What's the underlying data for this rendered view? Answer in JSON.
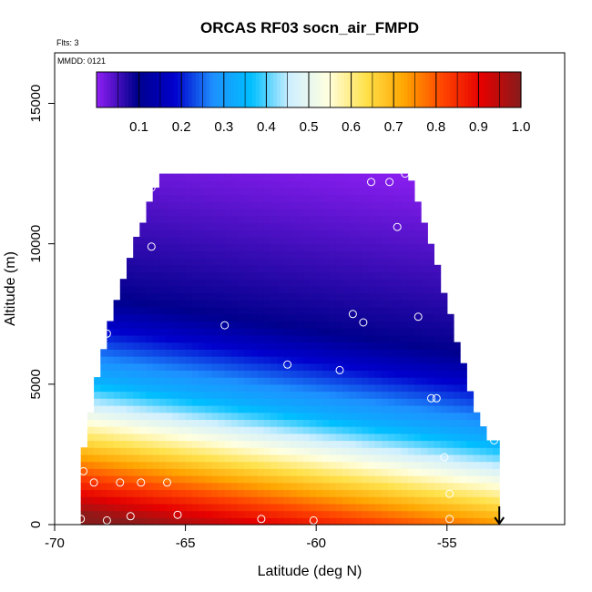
{
  "chart_data": {
    "type": "heatmap",
    "title": "ORCAS RF03 socn_air_FMPD",
    "note_flights": "Flts: 3",
    "note_date": "MMDD: 0121",
    "xlabel": "Latitude (deg N)",
    "ylabel": "Altitude (m)",
    "xlim": [
      -70,
      -50.5
    ],
    "ylim": [
      0,
      16800
    ],
    "xticks": [
      -70,
      -65,
      -60,
      -55
    ],
    "xtick_labels": [
      "-70",
      "-65",
      "-60",
      "-55"
    ],
    "yticks": [
      0,
      5000,
      10000,
      15000
    ],
    "ytick_labels": [
      "0",
      "5000",
      "10000",
      "15000"
    ],
    "colorbar": {
      "ticks": [
        0.1,
        0.2,
        0.3,
        0.4,
        0.5,
        0.6,
        0.7,
        0.8,
        0.9,
        1.0
      ],
      "tick_labels": [
        "0.1",
        "0.2",
        "0.3",
        "0.4",
        "0.5",
        "0.6",
        "0.7",
        "0.8",
        "0.9",
        "1.0"
      ],
      "range": [
        0,
        1
      ],
      "colors": [
        "#8a1ef0",
        "#00008c",
        "#0000cd",
        "#1e90ff",
        "#00bfff",
        "#cfefff",
        "#ffffe0",
        "#ffe14a",
        "#ffa500",
        "#ff4500",
        "#e60000",
        "#8b1a1a"
      ]
    },
    "field": {
      "lat_range": [
        -69,
        -53
      ],
      "alt_max_profile_lat": [
        -69,
        -68.5,
        -68,
        -67.5,
        -67,
        -66.5,
        -66,
        -65,
        -60,
        -57,
        -56.5,
        -56,
        -55.5,
        -55,
        -54.5,
        -54,
        -53.5,
        -53
      ],
      "alt_max_profile_alt": [
        2000,
        4500,
        6800,
        8200,
        9800,
        11000,
        12300,
        12300,
        12300,
        12300,
        12400,
        11000,
        9500,
        7800,
        6000,
        4200,
        3000,
        3000
      ],
      "bottom_value": 0.95,
      "top_value": 0.02
    },
    "samples": [
      {
        "lat": -69,
        "alt": 200
      },
      {
        "lat": -68.9,
        "alt": 1900
      },
      {
        "lat": -68.5,
        "alt": 1500
      },
      {
        "lat": -68,
        "alt": 150
      },
      {
        "lat": -68,
        "alt": 6800
      },
      {
        "lat": -67.5,
        "alt": 1500
      },
      {
        "lat": -67.1,
        "alt": 300
      },
      {
        "lat": -66.7,
        "alt": 1500
      },
      {
        "lat": -66.3,
        "alt": 9900
      },
      {
        "lat": -66.3,
        "alt": 12000
      },
      {
        "lat": -65.7,
        "alt": 1500
      },
      {
        "lat": -65.3,
        "alt": 350
      },
      {
        "lat": -63.5,
        "alt": 7100
      },
      {
        "lat": -62.1,
        "alt": 200
      },
      {
        "lat": -61.1,
        "alt": 5700
      },
      {
        "lat": -60.1,
        "alt": 150
      },
      {
        "lat": -59.1,
        "alt": 5500
      },
      {
        "lat": -58.6,
        "alt": 7500
      },
      {
        "lat": -58.2,
        "alt": 7200
      },
      {
        "lat": -57.9,
        "alt": 12200
      },
      {
        "lat": -57.2,
        "alt": 12200
      },
      {
        "lat": -56.9,
        "alt": 10600
      },
      {
        "lat": -56.6,
        "alt": 12500
      },
      {
        "lat": -56.1,
        "alt": 7400
      },
      {
        "lat": -55.6,
        "alt": 4500
      },
      {
        "lat": -55.4,
        "alt": 4500
      },
      {
        "lat": -55.1,
        "alt": 2400
      },
      {
        "lat": -54.9,
        "alt": 1100
      },
      {
        "lat": -54.9,
        "alt": 200
      },
      {
        "lat": -53.2,
        "alt": 3000
      }
    ],
    "marker_arrow_lat": -53
  }
}
